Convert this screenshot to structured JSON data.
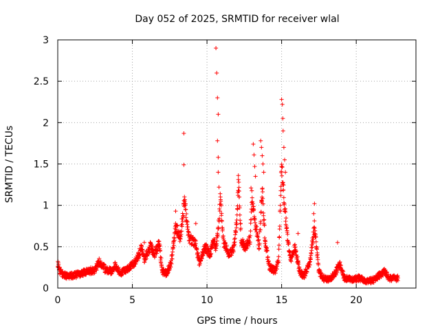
{
  "chart_data": {
    "type": "scatter",
    "title": "Day 052 of 2025, SRMTID for receiver wlal",
    "xlabel": "GPS time / hours",
    "ylabel": "SRMTID / TECUs",
    "xlim": [
      0,
      24
    ],
    "ylim": [
      0,
      3
    ],
    "xticks": [
      0,
      5,
      10,
      15,
      20
    ],
    "xtick_labels": [
      "0",
      "5",
      "10",
      "15",
      "20"
    ],
    "yticks": [
      0,
      0.5,
      1,
      1.5,
      2,
      2.5,
      3
    ],
    "ytick_labels": [
      "0",
      "0.5",
      "1",
      "1.5",
      "2",
      "2.5",
      "3"
    ],
    "grid": true,
    "marker": "+",
    "series": [
      {
        "name": "SRMTID",
        "color": "#ff0000",
        "profile": [
          [
            0.0,
            0.3
          ],
          [
            0.15,
            0.2
          ],
          [
            0.5,
            0.15
          ],
          [
            1.0,
            0.15
          ],
          [
            1.5,
            0.17
          ],
          [
            2.0,
            0.2
          ],
          [
            2.5,
            0.22
          ],
          [
            2.8,
            0.32
          ],
          [
            3.2,
            0.22
          ],
          [
            3.6,
            0.2
          ],
          [
            3.8,
            0.28
          ],
          [
            4.2,
            0.18
          ],
          [
            4.6,
            0.22
          ],
          [
            5.0,
            0.28
          ],
          [
            5.3,
            0.35
          ],
          [
            5.6,
            0.48
          ],
          [
            5.8,
            0.35
          ],
          [
            6.2,
            0.5
          ],
          [
            6.5,
            0.4
          ],
          [
            6.8,
            0.55
          ],
          [
            7.0,
            0.2
          ],
          [
            7.3,
            0.18
          ],
          [
            7.6,
            0.3
          ],
          [
            7.9,
            0.75
          ],
          [
            8.2,
            0.6
          ],
          [
            8.5,
            1.05
          ],
          [
            8.8,
            0.6
          ],
          [
            9.2,
            0.55
          ],
          [
            9.5,
            0.3
          ],
          [
            9.9,
            0.5
          ],
          [
            10.2,
            0.4
          ],
          [
            10.5,
            0.6
          ],
          [
            10.6,
            0.45
          ],
          [
            10.8,
            0.8
          ],
          [
            10.9,
            1.1
          ],
          [
            11.1,
            0.55
          ],
          [
            11.5,
            0.4
          ],
          [
            11.8,
            0.5
          ],
          [
            12.0,
            0.8
          ],
          [
            12.1,
            1.3
          ],
          [
            12.3,
            0.55
          ],
          [
            12.6,
            0.5
          ],
          [
            12.9,
            0.6
          ],
          [
            13.0,
            1.1
          ],
          [
            13.2,
            0.8
          ],
          [
            13.5,
            0.5
          ],
          [
            13.7,
            1.2
          ],
          [
            13.9,
            0.55
          ],
          [
            14.2,
            0.25
          ],
          [
            14.6,
            0.2
          ],
          [
            14.8,
            0.35
          ],
          [
            15.0,
            1.5
          ],
          [
            15.2,
            1.0
          ],
          [
            15.4,
            0.6
          ],
          [
            15.6,
            0.35
          ],
          [
            15.9,
            0.5
          ],
          [
            16.2,
            0.2
          ],
          [
            16.5,
            0.15
          ],
          [
            16.9,
            0.3
          ],
          [
            17.2,
            0.75
          ],
          [
            17.5,
            0.2
          ],
          [
            17.8,
            0.12
          ],
          [
            18.2,
            0.1
          ],
          [
            18.6,
            0.18
          ],
          [
            18.9,
            0.3
          ],
          [
            19.2,
            0.12
          ],
          [
            19.7,
            0.1
          ],
          [
            20.2,
            0.12
          ],
          [
            20.7,
            0.08
          ],
          [
            21.2,
            0.1
          ],
          [
            21.6,
            0.16
          ],
          [
            21.9,
            0.2
          ],
          [
            22.2,
            0.12
          ],
          [
            22.8,
            0.12
          ]
        ],
        "spikes": [
          [
            8.45,
            1.87
          ],
          [
            8.45,
            1.49
          ],
          [
            10.6,
            2.9
          ],
          [
            10.65,
            2.6
          ],
          [
            10.7,
            2.3
          ],
          [
            10.75,
            2.1
          ],
          [
            10.7,
            1.78
          ],
          [
            10.75,
            1.58
          ],
          [
            10.75,
            1.4
          ],
          [
            10.8,
            1.22
          ],
          [
            12.1,
            1.36
          ],
          [
            12.15,
            1.1
          ],
          [
            12.95,
            1.21
          ],
          [
            13.1,
            1.74
          ],
          [
            13.15,
            1.61
          ],
          [
            13.2,
            1.47
          ],
          [
            13.25,
            1.35
          ],
          [
            13.6,
            1.78
          ],
          [
            13.65,
            1.7
          ],
          [
            13.7,
            1.6
          ],
          [
            13.75,
            1.5
          ],
          [
            13.8,
            1.4
          ],
          [
            15.0,
            2.28
          ],
          [
            15.05,
            2.22
          ],
          [
            15.08,
            2.05
          ],
          [
            15.1,
            1.9
          ],
          [
            15.15,
            1.7
          ],
          [
            15.2,
            1.55
          ],
          [
            15.25,
            1.4
          ],
          [
            17.2,
            1.02
          ],
          [
            17.15,
            0.9
          ],
          [
            7.9,
            0.93
          ],
          [
            9.25,
            0.78
          ],
          [
            18.75,
            0.55
          ],
          [
            16.1,
            0.66
          ],
          [
            5.8,
            0.55
          ]
        ],
        "n_points": 1800,
        "scatter_spread": 0.05
      }
    ]
  }
}
